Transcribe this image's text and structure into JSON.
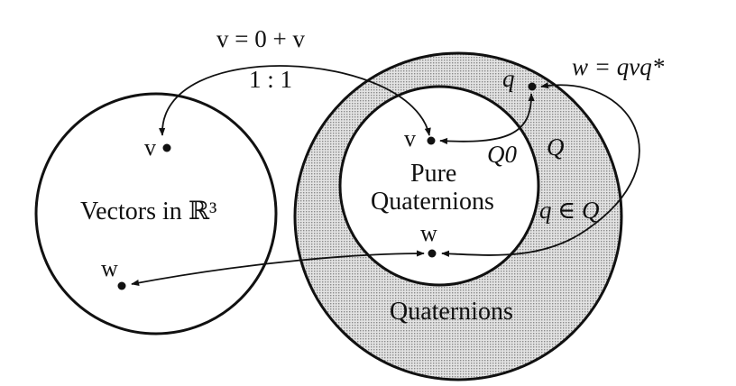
{
  "labels": {
    "map_top": "v = 0 + v",
    "one_to_one": "1 : 1",
    "rotation": "w = qvq*",
    "v_left": "v",
    "w_left": "w",
    "vectors_space": "Vectors in ℝ³",
    "v_mid": "v",
    "pure_line1": "Pure",
    "pure_line2": "Quaternions",
    "w_mid": "w",
    "q_point": "q",
    "Q0": "Q0",
    "Q": "Q",
    "q_in_Q": "q ∈ Q",
    "quaternions": "Quaternions"
  },
  "colors": {
    "stroke": "#111111",
    "shade": "#d4d4d4"
  }
}
